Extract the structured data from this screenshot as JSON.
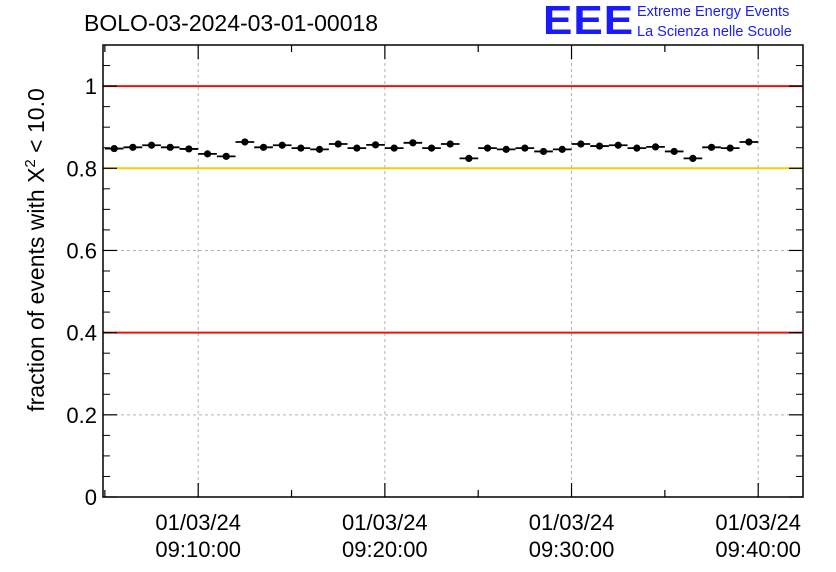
{
  "header": {
    "run_title": "BOLO-03-2024-03-01-00018",
    "logo_text": "EEE",
    "logo_line1": "Extreme Energy Events",
    "logo_line2": "La Scienza nelle Scuole"
  },
  "axis": {
    "ylabel_prefix": "fraction of events with X",
    "ylabel_sup": "2",
    "ylabel_suffix": " < 10.0"
  },
  "chart_data": {
    "type": "scatter",
    "title": "BOLO-03-2024-03-01-00018",
    "xlabel": "",
    "ylabel": "fraction of events with X^2 < 10.0",
    "ylim": [
      0,
      1.1
    ],
    "xlim_minutes": [
      4.9,
      42.4
    ],
    "grid": true,
    "x_tick_labels": [
      {
        "date": "01/03/24",
        "time": "09:10:00",
        "minute": 10
      },
      {
        "date": "01/03/24",
        "time": "09:20:00",
        "minute": 20
      },
      {
        "date": "01/03/24",
        "time": "09:30:00",
        "minute": 30
      },
      {
        "date": "01/03/24",
        "time": "09:40:00",
        "minute": 40
      }
    ],
    "y_ticks": [
      0,
      0.2,
      0.4,
      0.6,
      0.8,
      1
    ],
    "y_tick_labels": [
      "0",
      "0.2",
      "0.4",
      "0.6",
      "0.8",
      "1"
    ],
    "reference_lines": [
      {
        "y": 1.0,
        "color": "#ee1111"
      },
      {
        "y": 0.8,
        "color": "#ffcc00"
      },
      {
        "y": 0.4,
        "color": "#ee1111"
      }
    ],
    "bin_width_minutes": 1,
    "series": [
      {
        "x_start_minutes": 5.0,
        "values": [
          0.848,
          0.851,
          0.856,
          0.851,
          0.847,
          0.835,
          0.829,
          0.864,
          0.851,
          0.856,
          0.849,
          0.846,
          0.859,
          0.849,
          0.857,
          0.849,
          0.862,
          0.849,
          0.859,
          0.824,
          0.849,
          0.846,
          0.849,
          0.841,
          0.846,
          0.859,
          0.854,
          0.856,
          0.849,
          0.852,
          0.841,
          0.824,
          0.851,
          0.849,
          0.864
        ]
      }
    ]
  }
}
